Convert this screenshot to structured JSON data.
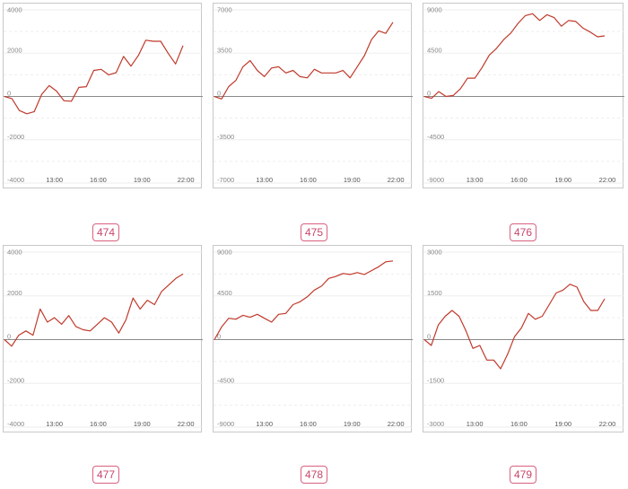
{
  "chart_data": [
    {
      "type": "line",
      "label": "474",
      "ylim": [
        -4000,
        4000
      ],
      "yticks": [
        "4000",
        "2000",
        "0",
        "-2000",
        "-4000"
      ],
      "xticks": [
        "13:00",
        "16:00",
        "19:00",
        "22:00"
      ],
      "line_color": "#c0392b",
      "values": [
        0,
        -100,
        -650,
        -800,
        -700,
        100,
        500,
        250,
        -200,
        -220,
        420,
        450,
        1200,
        1250,
        1000,
        1100,
        1850,
        1400,
        1900,
        2600,
        2550,
        2550,
        2000,
        1500,
        2350
      ]
    },
    {
      "type": "line",
      "label": "475",
      "ylim": [
        -7000,
        7000
      ],
      "yticks": [
        "7000",
        "3500",
        "0",
        "-3500",
        "-7000"
      ],
      "xticks": [
        "13:00",
        "16:00",
        "19:00",
        "22:00"
      ],
      "line_color": "#c0392b",
      "values": [
        0,
        -200,
        800,
        1300,
        2400,
        2900,
        2100,
        1600,
        2300,
        2400,
        1900,
        2100,
        1600,
        1500,
        2200,
        1900,
        1900,
        1900,
        2100,
        1500,
        2400,
        3300,
        4600,
        5300,
        5100,
        6000
      ]
    },
    {
      "type": "line",
      "label": "476",
      "ylim": [
        -9000,
        9000
      ],
      "yticks": [
        "9000",
        "4500",
        "0",
        "-4500",
        "-9000"
      ],
      "xticks": [
        "13:00",
        "16:00",
        "19:00",
        "22:00"
      ],
      "line_color": "#c0392b",
      "values": [
        0,
        -200,
        500,
        0,
        100,
        800,
        1900,
        1900,
        3000,
        4300,
        5000,
        5900,
        6600,
        7600,
        8400,
        8600,
        7900,
        8500,
        8200,
        7300,
        7900,
        7800,
        7100,
        6700,
        6200,
        6300
      ]
    },
    {
      "type": "line",
      "label": "477",
      "ylim": [
        -4000,
        4000
      ],
      "yticks": [
        "4000",
        "2000",
        "0",
        "-2000",
        "-4000"
      ],
      "xticks": [
        "13:00",
        "16:00",
        "19:00",
        "22:00"
      ],
      "line_color": "#c0392b",
      "values": [
        0,
        -300,
        200,
        400,
        200,
        1400,
        800,
        1000,
        700,
        1100,
        600,
        450,
        400,
        700,
        1000,
        800,
        300,
        900,
        1900,
        1400,
        1800,
        1600,
        2200,
        2500,
        2800,
        3000
      ]
    },
    {
      "type": "line",
      "label": "478",
      "ylim": [
        -9000,
        9000
      ],
      "yticks": [
        "9000",
        "4500",
        "0",
        "-4500",
        "-9000"
      ],
      "xticks": [
        "13:00",
        "16:00",
        "19:00",
        "22:00"
      ],
      "line_color": "#c0392b",
      "values": [
        0,
        1300,
        2200,
        2100,
        2500,
        2300,
        2600,
        2200,
        1800,
        2600,
        2700,
        3600,
        3900,
        4400,
        5100,
        5500,
        6300,
        6500,
        6800,
        6700,
        6900,
        6700,
        7100,
        7500,
        8000,
        8100
      ]
    },
    {
      "type": "line",
      "label": "479",
      "ylim": [
        -3000,
        3000
      ],
      "yticks": [
        "3000",
        "1500",
        "0",
        "-1500",
        "-3000"
      ],
      "xticks": [
        "13:00",
        "16:00",
        "19:00",
        "22:00"
      ],
      "line_color": "#c0392b",
      "values": [
        0,
        -200,
        500,
        800,
        1000,
        800,
        300,
        -300,
        -200,
        -700,
        -700,
        -1000,
        -500,
        100,
        400,
        900,
        700,
        800,
        1200,
        1600,
        1700,
        1900,
        1800,
        1300,
        1000,
        1000,
        1400
      ]
    }
  ]
}
